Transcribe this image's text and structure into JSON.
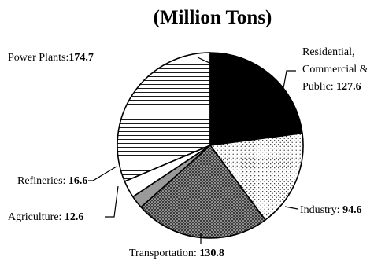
{
  "chart_data": {
    "type": "pie",
    "title": "(Million Tons)",
    "slices": [
      {
        "name": "Power Plants",
        "value": 174.7,
        "value_label": "174.7",
        "pattern": "horizontal-lines"
      },
      {
        "name": "Residential, Commercial & Public",
        "value": 127.6,
        "value_label": "127.6",
        "pattern": "solid-black"
      },
      {
        "name": "Industry",
        "value": 94.6,
        "value_label": "94.6",
        "pattern": "sparse-dots"
      },
      {
        "name": "Transportation",
        "value": 130.8,
        "value_label": "130.8",
        "pattern": "dense-dots"
      },
      {
        "name": "Agriculture",
        "value": 12.6,
        "value_label": "12.6",
        "pattern": "gray"
      },
      {
        "name": "Refineries",
        "value": 16.6,
        "value_label": "16.6",
        "pattern": "white"
      }
    ],
    "legend": "none",
    "colors": {
      "background": "#ffffff",
      "stroke": "#000000",
      "gray": "#9a9a9a"
    }
  }
}
